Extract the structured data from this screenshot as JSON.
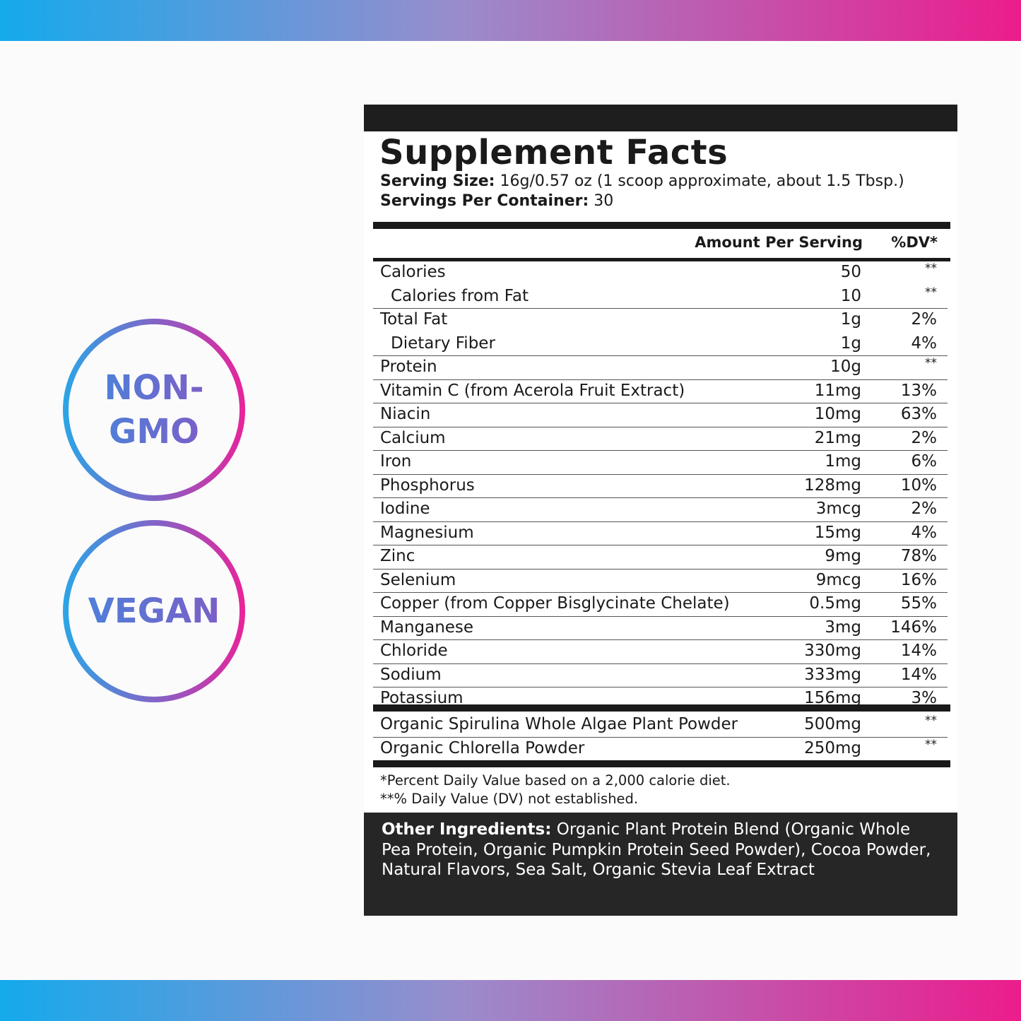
{
  "badges": {
    "nongmo": [
      "NON-",
      "GMO"
    ],
    "vegan": "VEGAN"
  },
  "label": {
    "title": "Supplement Facts",
    "serving_size_label": "Serving Size:",
    "serving_size_value": "16g/0.57 oz (1 scoop approximate, about 1.5 Tbsp.)",
    "servings_per_container_label": "Servings Per Container:",
    "servings_per_container_value": "30",
    "header_amount": "Amount Per Serving",
    "header_dv": "%DV*",
    "rows": [
      {
        "name": "Calories",
        "amount": "50",
        "dv": "**",
        "indent": false,
        "border": false
      },
      {
        "name": "Calories from Fat",
        "amount": "10",
        "dv": "**",
        "indent": true,
        "border": true
      },
      {
        "name": "Total Fat",
        "amount": "1g",
        "dv": "2%",
        "indent": false,
        "border": false
      },
      {
        "name": "Dietary Fiber",
        "amount": "1g",
        "dv": "4%",
        "indent": true,
        "border": true
      },
      {
        "name": "Protein",
        "amount": "10g",
        "dv": "**",
        "indent": false,
        "border": true
      },
      {
        "name": "Vitamin C (from Acerola Fruit Extract)",
        "amount": "11mg",
        "dv": "13%",
        "indent": false,
        "border": true
      },
      {
        "name": "Niacin",
        "amount": "10mg",
        "dv": "63%",
        "indent": false,
        "border": true
      },
      {
        "name": "Calcium",
        "amount": "21mg",
        "dv": "2%",
        "indent": false,
        "border": true
      },
      {
        "name": "Iron",
        "amount": "1mg",
        "dv": "6%",
        "indent": false,
        "border": true
      },
      {
        "name": "Phosphorus",
        "amount": "128mg",
        "dv": "10%",
        "indent": false,
        "border": true
      },
      {
        "name": "Iodine",
        "amount": "3mcg",
        "dv": "2%",
        "indent": false,
        "border": true
      },
      {
        "name": "Magnesium",
        "amount": "15mg",
        "dv": "4%",
        "indent": false,
        "border": true
      },
      {
        "name": "Zinc",
        "amount": "9mg",
        "dv": "78%",
        "indent": false,
        "border": true
      },
      {
        "name": "Selenium",
        "amount": "9mcg",
        "dv": "16%",
        "indent": false,
        "border": true
      },
      {
        "name": "Copper (from Copper Bisglycinate Chelate)",
        "amount": "0.5mg",
        "dv": "55%",
        "indent": false,
        "border": true
      },
      {
        "name": "Manganese",
        "amount": "3mg",
        "dv": "146%",
        "indent": false,
        "border": true
      },
      {
        "name": "Chloride",
        "amount": "330mg",
        "dv": "14%",
        "indent": false,
        "border": true
      },
      {
        "name": "Sodium",
        "amount": "333mg",
        "dv": "14%",
        "indent": false,
        "border": true
      },
      {
        "name": "Potassium",
        "amount": "156mg",
        "dv": "3%",
        "indent": false,
        "border": false
      }
    ],
    "blend_rows": [
      {
        "name": "Organic Spirulina Whole Algae Plant Powder",
        "amount": "500mg",
        "dv": "**",
        "border": true
      },
      {
        "name": "Organic Chlorella Powder",
        "amount": "250mg",
        "dv": "**",
        "border": false
      }
    ],
    "footnote_1": "*Percent Daily Value based on a 2,000 calorie diet.",
    "footnote_2": "**% Daily Value (DV) not established.",
    "other_label": "Other Ingredients:",
    "other_text": "Organic Plant Protein Blend (Organic Whole Pea Protein, Organic Pumpkin Protein Seed Powder), Cocoa Powder, Natural Flavors, Sea Salt, Organic Stevia Leaf Extract"
  },
  "colors": {
    "gradient_start": "#14aaec",
    "gradient_end": "#ec1c8c",
    "panel_dark": "#1e1e1e",
    "badge_text": "#6a6ad0"
  }
}
